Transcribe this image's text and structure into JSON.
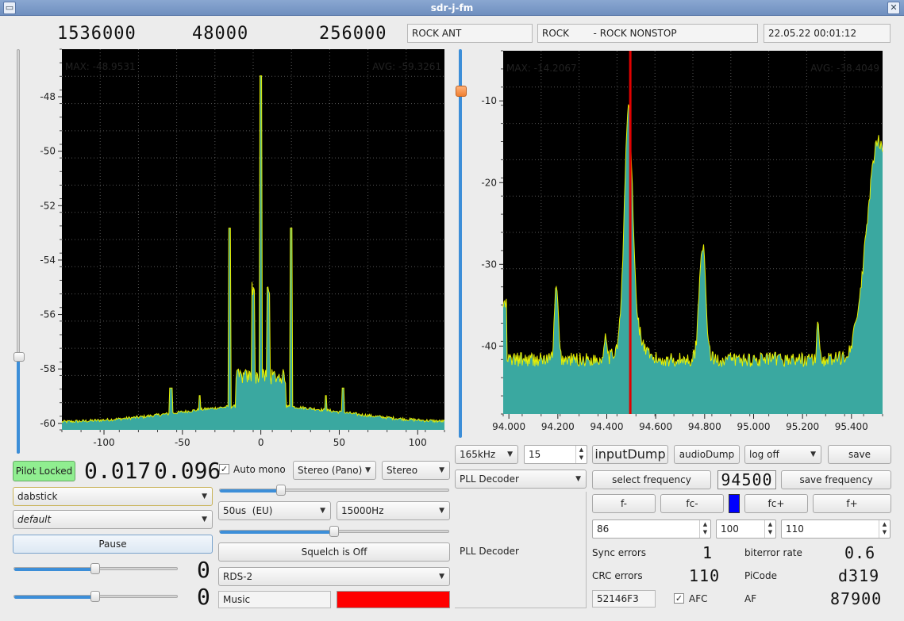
{
  "window": {
    "title": "sdr-j-fm"
  },
  "topbar": {
    "lcd_frequency": "1536000",
    "lcd_rate": "48000",
    "lcd_bw": "256000",
    "station_name": "ROCK ANT",
    "radiotext": "ROCK        - ROCK NONSTOP",
    "datetime": "22.05.22 00:01:12"
  },
  "left_spectrum": {
    "max_label": "MAX: -48.9531",
    "avg_label": "AVG: -59.3261",
    "yticks": [
      "-48",
      "-50",
      "-52",
      "-54",
      "-56",
      "-58",
      "-60"
    ],
    "xticks": [
      "-100",
      "-50",
      "0",
      "50",
      "100"
    ]
  },
  "right_spectrum": {
    "max_label": "MAX: -14.2067",
    "avg_label": "AVG: -38.4049",
    "yticks": [
      "-10",
      "-20",
      "-30",
      "-40"
    ],
    "xticks": [
      "94.000",
      "94.200",
      "94.400",
      "94.600",
      "94.800",
      "95.000",
      "95.200",
      "95.400"
    ]
  },
  "left_panel": {
    "pilot_status": "Pilot Locked",
    "pilot_lcd_1": "0.017",
    "pilot_lcd_2": "0.096",
    "device": "dabstick",
    "profile": "default",
    "pause_label": "Pause",
    "lcd_a": "0",
    "lcd_b": "0"
  },
  "middle_panel": {
    "auto_mono_label": "Auto mono",
    "auto_mono_checked": true,
    "stereo_mode": "Stereo (Pano)",
    "stereo_select": "Stereo",
    "deemphasis": "50us  (EU)",
    "lowpass": "15000Hz",
    "squelch_label": "Squelch is Off",
    "rds_mode": "RDS-2",
    "program_type": "Music",
    "indicator_color": "#ff0000"
  },
  "decoder_panel": {
    "bandwidth": "165kHz",
    "spin_value": "15",
    "decoder": "PLL Decoder",
    "decoder_label": "PLL Decoder"
  },
  "right_panel": {
    "input_dump": "inputDump",
    "audio_dump": "audioDump",
    "log_mode": "log off",
    "save": "save",
    "select_frequency": "select frequency",
    "freq_lcd": "94500",
    "save_frequency": "save frequency",
    "f_minus": "f-",
    "fc_minus": "fc-",
    "fc_plus": "fc+",
    "f_plus": "f+",
    "marker_color": "#0000ff",
    "spin1": "86",
    "spin2": "100",
    "spin3": "110",
    "sync_errors_label": "Sync errors",
    "sync_errors_value": "1",
    "biterror_label": "biterror rate",
    "biterror_value": "0.6",
    "crc_errors_label": "CRC errors",
    "crc_errors_value": "110",
    "picode_label": "PiCode",
    "picode_value": "d319",
    "hex_code": "52146F3",
    "afc_label": "AFC",
    "afc_checked": true,
    "af_label": "AF",
    "af_value": "87900"
  }
}
